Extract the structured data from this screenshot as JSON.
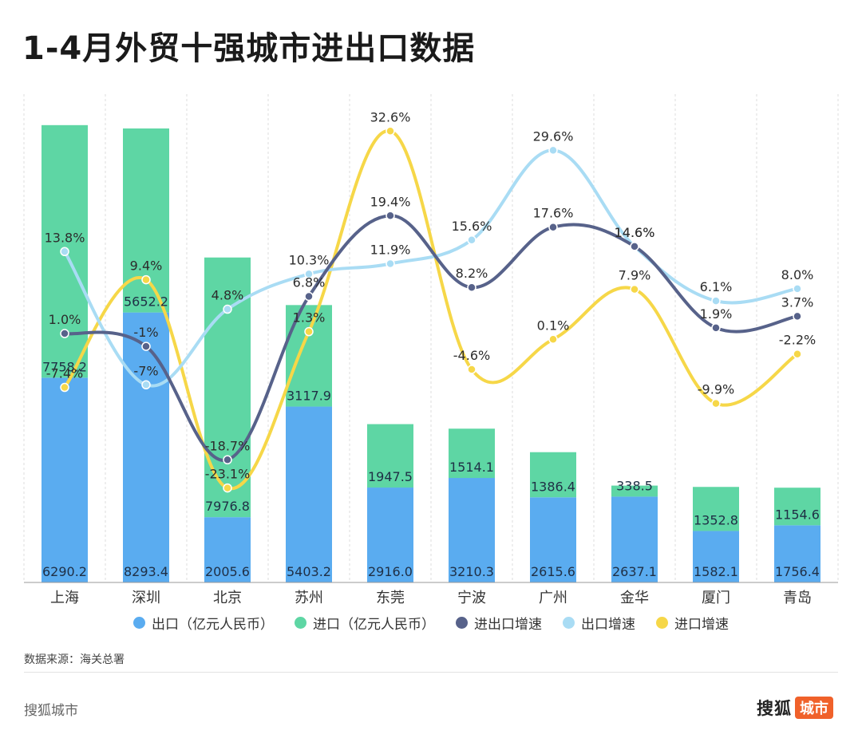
{
  "title": "1-4月外贸十强城市进出口数据",
  "chart_data": {
    "type": "bar",
    "stacked": true,
    "title": "1-4月外贸十强城市进出口数据",
    "categories": [
      "上海",
      "深圳",
      "北京",
      "苏州",
      "东莞",
      "宁波",
      "广州",
      "金华",
      "厦门",
      "青岛"
    ],
    "bars": [
      {
        "name": "出口（亿元人民币）",
        "color": "#5aacf0",
        "values": [
          6290.2,
          8293.4,
          2005.6,
          5403.2,
          2916.0,
          3210.3,
          2615.6,
          2637.1,
          1582.1,
          1756.4
        ],
        "labels": [
          "6290.2",
          "8293.4",
          "2005.6",
          "5403.2",
          "2916.0",
          "3210.3",
          "2615.6",
          "2637.1",
          "1582.1",
          "1756.4"
        ]
      },
      {
        "name": "进口（亿元人民币）",
        "color": "#5ed6a4",
        "values": [
          7758.2,
          5652.2,
          7976.8,
          3117.9,
          1947.5,
          1514.1,
          1386.4,
          338.5,
          1352.8,
          1154.6
        ],
        "labels": [
          "7758.2",
          "5652.2",
          "7976.8",
          "3117.9",
          "1947.5",
          "1514.1",
          "1386.4",
          "338.5",
          "1352.8",
          "1154.6"
        ]
      }
    ],
    "lines": [
      {
        "name": "进出口增速",
        "color": "#57628a",
        "values": [
          1.0,
          -1,
          -18.7,
          6.8,
          19.4,
          8.2,
          17.6,
          14.6,
          1.9,
          3.7
        ],
        "labels": [
          "1.0%",
          "-1%",
          "-18.7%",
          "6.8%",
          "19.4%",
          "8.2%",
          "17.6%",
          "14.6%",
          "1.9%",
          "3.7%"
        ]
      },
      {
        "name": "出口增速",
        "color": "#a9dcf4",
        "values": [
          13.8,
          -7,
          4.8,
          10.3,
          11.9,
          15.6,
          29.6,
          14.6,
          6.1,
          8.0
        ],
        "labels": [
          "13.8%",
          "-7%",
          "4.8%",
          "10.3%",
          "11.9%",
          "15.6%",
          "29.6%",
          "14.6%",
          "6.1%",
          "8.0%"
        ]
      },
      {
        "name": "进口增速",
        "color": "#f6d748",
        "values": [
          -7.4,
          9.4,
          -23.1,
          1.3,
          32.6,
          -4.6,
          0.1,
          7.9,
          -9.9,
          -2.2
        ],
        "labels": [
          "-7.4%",
          "9.4%",
          "-23.1%",
          "1.3%",
          "32.6%",
          "-4.6%",
          "0.1%",
          "7.9%",
          "-9.9%",
          "-2.2%"
        ]
      }
    ],
    "bar_ylim": [
      0,
      15000
    ],
    "line_ylim": [
      -30,
      35
    ],
    "grid": "vertical-dashed",
    "legend_position": "bottom"
  },
  "source": "数据来源：海关总署",
  "footer_left": "搜狐城市",
  "brand": {
    "main": "搜狐",
    "tag": "城市"
  }
}
